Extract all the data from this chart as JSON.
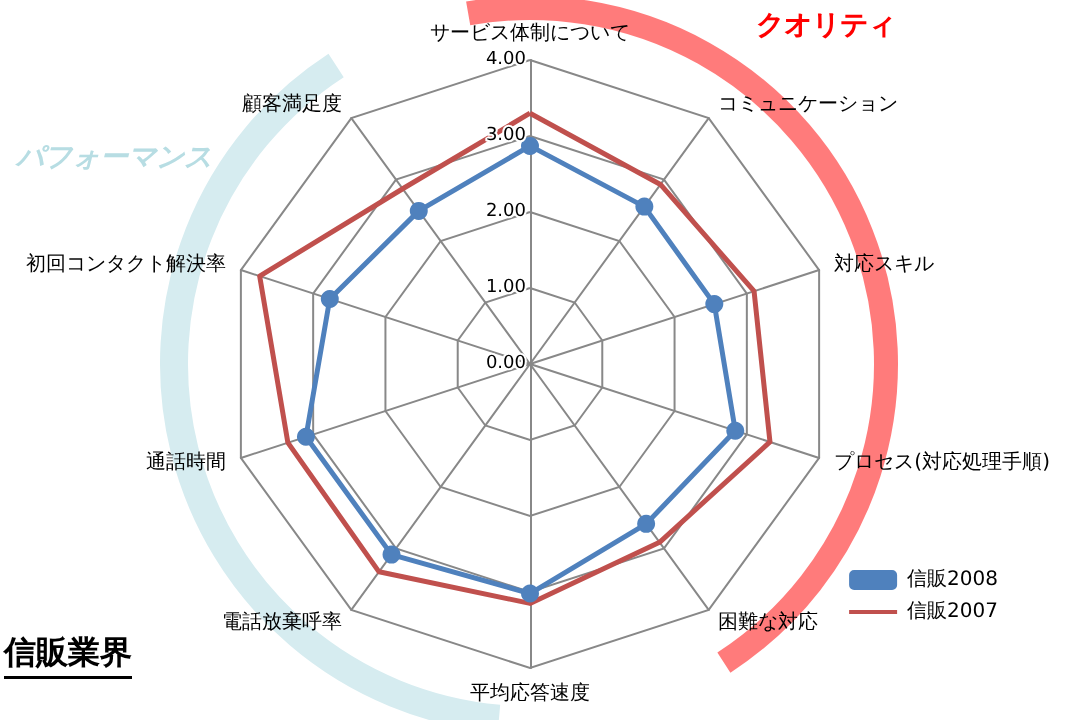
{
  "chart_data": {
    "type": "radar",
    "title": "信販業界",
    "categories": [
      "サービス体制について",
      "コミュニケーション",
      "対応スキル",
      "プロセス(対応処理手順)",
      "困難な対応",
      "平均応答速度",
      "電話放棄呼率",
      "通話時間",
      "初回コンタクト解決率",
      "顧客満足度"
    ],
    "series": [
      {
        "name": "信販2008",
        "color": "#4f81bd",
        "marker": "circle",
        "values": [
          2.87,
          2.56,
          2.55,
          2.84,
          2.6,
          3.02,
          3.1,
          3.1,
          2.77,
          2.49
        ]
      },
      {
        "name": "信販2007",
        "color": "#c0504d",
        "marker": "none",
        "values": [
          3.3,
          2.92,
          3.1,
          3.32,
          2.9,
          3.15,
          3.38,
          3.35,
          3.74,
          2.85
        ]
      }
    ],
    "ylim": [
      0,
      4
    ],
    "yticks": [
      {
        "value": 0,
        "label": "0.00"
      },
      {
        "value": 1,
        "label": "1.00"
      },
      {
        "value": 2,
        "label": "2.00"
      },
      {
        "value": 3,
        "label": "3.00"
      },
      {
        "value": 4,
        "label": "4.00"
      }
    ],
    "annotations": [
      "クオリティ",
      "パフォーマンス"
    ],
    "legend": "right"
  }
}
